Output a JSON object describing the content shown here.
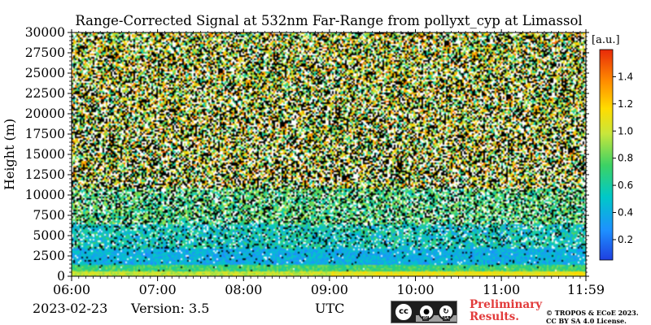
{
  "chart_data": {
    "type": "heatmap",
    "title": "Range-Corrected Signal at 532nm Far-Range from pollyxt_cyp at Limassol",
    "ylabel": "Height (m)",
    "xlabel": "UTC",
    "x_ticks": [
      "06:00",
      "07:00",
      "08:00",
      "09:00",
      "10:00",
      "11:00",
      "11:59"
    ],
    "x_range_hours": [
      6.0,
      11.983
    ],
    "y_ticks": [
      0,
      2500,
      5000,
      7500,
      10000,
      12500,
      15000,
      17500,
      20000,
      22500,
      25000,
      27500,
      30000
    ],
    "ylim": [
      0,
      30000
    ],
    "colorbar": {
      "unit": "[a.u.]",
      "ticks": [
        0.2,
        0.4,
        0.6,
        0.8,
        1.0,
        1.2,
        1.4
      ],
      "range": [
        0.05,
        1.6
      ],
      "colormap": [
        "#1f3fdf",
        "#1e90ff",
        "#00c8c8",
        "#3cd264",
        "#c8e63c",
        "#ffdc00",
        "#ff8c00",
        "#e82a0a"
      ]
    },
    "date": "2023-02-23",
    "version": "Version: 3.5"
  },
  "footer": {
    "license_badge": {
      "cc": "cc",
      "by": "BY",
      "sa": "SA"
    },
    "preliminary": [
      "Preliminary",
      "Results."
    ],
    "copyright": [
      "© TROPOS & ECoE 2023.",
      "CC BY SA 4.0 License."
    ]
  }
}
